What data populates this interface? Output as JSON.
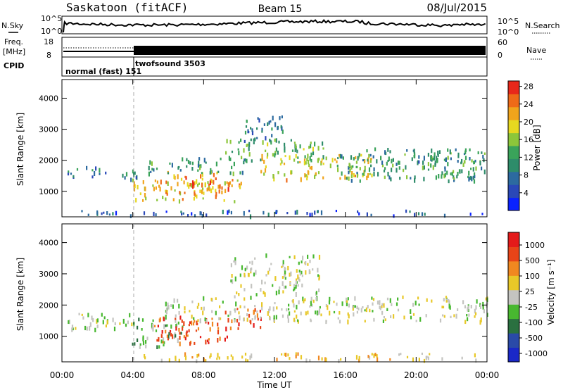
{
  "header": {
    "station": "Saskatoon (fitACF)",
    "beam": "Beam 15",
    "date": "08/Jul/2015"
  },
  "noise_panel": {
    "left_label": "N.Sky",
    "right_label": "N.Search",
    "left_ticks": [
      "10^5",
      "10^0"
    ],
    "right_ticks": [
      "10^5",
      "10^0"
    ]
  },
  "freq_panel": {
    "left_label_1": "Freq.",
    "left_label_2": "[MHz]",
    "right_label": "Nave",
    "left_ticks": [
      "18",
      "8"
    ],
    "right_ticks": [
      "60",
      "0"
    ]
  },
  "cpid_panel": {
    "label": "CPID",
    "modes": [
      {
        "text": "normal (fast) 151",
        "start_hour": 0
      },
      {
        "text": "twofsound 3503",
        "start_hour": 4
      }
    ]
  },
  "chart_data": [
    {
      "type": "heatmap",
      "name": "power",
      "ylabel": "Slant Range [km]",
      "ylim": [
        180,
        4600
      ],
      "yticks": [
        1000,
        2000,
        3000,
        4000
      ],
      "xlim": [
        0,
        24
      ],
      "colorbar": {
        "label": "Power [dB]",
        "ticks": [
          "4",
          "8",
          "12",
          "16",
          "20",
          "24",
          "28"
        ],
        "colors": [
          "#0a22ff",
          "#2a48b8",
          "#2c6aa0",
          "#2e8c6a",
          "#3aa35a",
          "#8cc63a",
          "#e6d820",
          "#f0a41c",
          "#ee6a18",
          "#e8281a"
        ]
      },
      "bands": [
        {
          "t0": 0.3,
          "t1": 2.6,
          "r0": 1380,
          "r1": 1750,
          "mid": 9
        },
        {
          "t0": 2.6,
          "t1": 4.2,
          "r0": 1300,
          "r1": 1650,
          "mid": 10
        },
        {
          "t0": 3.9,
          "t1": 10.2,
          "r0": 650,
          "r1": 1350,
          "mid": 22
        },
        {
          "t0": 5.8,
          "t1": 9.6,
          "r0": 900,
          "r1": 1600,
          "mid": 25
        },
        {
          "t0": 4.8,
          "t1": 10.5,
          "r0": 1550,
          "r1": 2050,
          "mid": 13
        },
        {
          "t0": 9.2,
          "t1": 14.8,
          "r0": 1900,
          "r1": 2650,
          "mid": 15
        },
        {
          "t0": 11.2,
          "t1": 17.5,
          "r0": 1350,
          "r1": 2150,
          "mid": 21
        },
        {
          "t0": 15.5,
          "t1": 24,
          "r0": 1300,
          "r1": 2200,
          "mid": 13
        },
        {
          "t0": 10,
          "t1": 12.5,
          "r0": 2500,
          "r1": 3400,
          "mid": 10
        },
        {
          "t0": 17,
          "t1": 23.8,
          "r0": 1900,
          "r1": 2350,
          "mid": 11
        },
        {
          "t0": 0.5,
          "t1": 23.9,
          "r0": 190,
          "r1": 350,
          "mid": 7
        }
      ]
    },
    {
      "type": "heatmap",
      "name": "velocity",
      "ylabel": "Slant Range [km]",
      "ylim": [
        180,
        4600
      ],
      "yticks": [
        1000,
        2000,
        3000,
        4000
      ],
      "xlim": [
        0,
        24
      ],
      "colorbar": {
        "label": "Velocity [m s⁻¹]",
        "ticks": [
          "1000",
          "500",
          "100",
          "25",
          "-25",
          "-100",
          "-500",
          "-1000"
        ],
        "colors": [
          "#1a28c8",
          "#2a4aa8",
          "#2a7040",
          "#48b830",
          "#c4c4c0",
          "#e8c828",
          "#f08820",
          "#e84418",
          "#e41a1a"
        ]
      },
      "bands": [
        {
          "t0": 0.3,
          "t1": 4.2,
          "r0": 1150,
          "r1": 1700,
          "v": 4
        },
        {
          "t0": 3.9,
          "t1": 6.8,
          "r0": 620,
          "r1": 1550,
          "v": 3
        },
        {
          "t0": 5.2,
          "t1": 9.4,
          "r0": 700,
          "r1": 1600,
          "v": 7
        },
        {
          "t0": 9.2,
          "t1": 11.2,
          "r0": 1200,
          "r1": 1850,
          "v": 7
        },
        {
          "t0": 5.5,
          "t1": 24,
          "r0": 1450,
          "r1": 2250,
          "v": 4
        },
        {
          "t0": 9.5,
          "t1": 14.5,
          "r0": 2300,
          "r1": 3600,
          "v": 4
        },
        {
          "t0": 4.5,
          "t1": 23.5,
          "r0": 190,
          "r1": 420,
          "v": 5
        }
      ]
    }
  ],
  "x_axis": {
    "label": "Time UT",
    "ticks": [
      "00:00",
      "04:00",
      "08:00",
      "12:00",
      "16:00",
      "20:00",
      "00:00"
    ],
    "tick_hours": [
      0,
      4,
      8,
      12,
      16,
      20,
      24
    ]
  }
}
